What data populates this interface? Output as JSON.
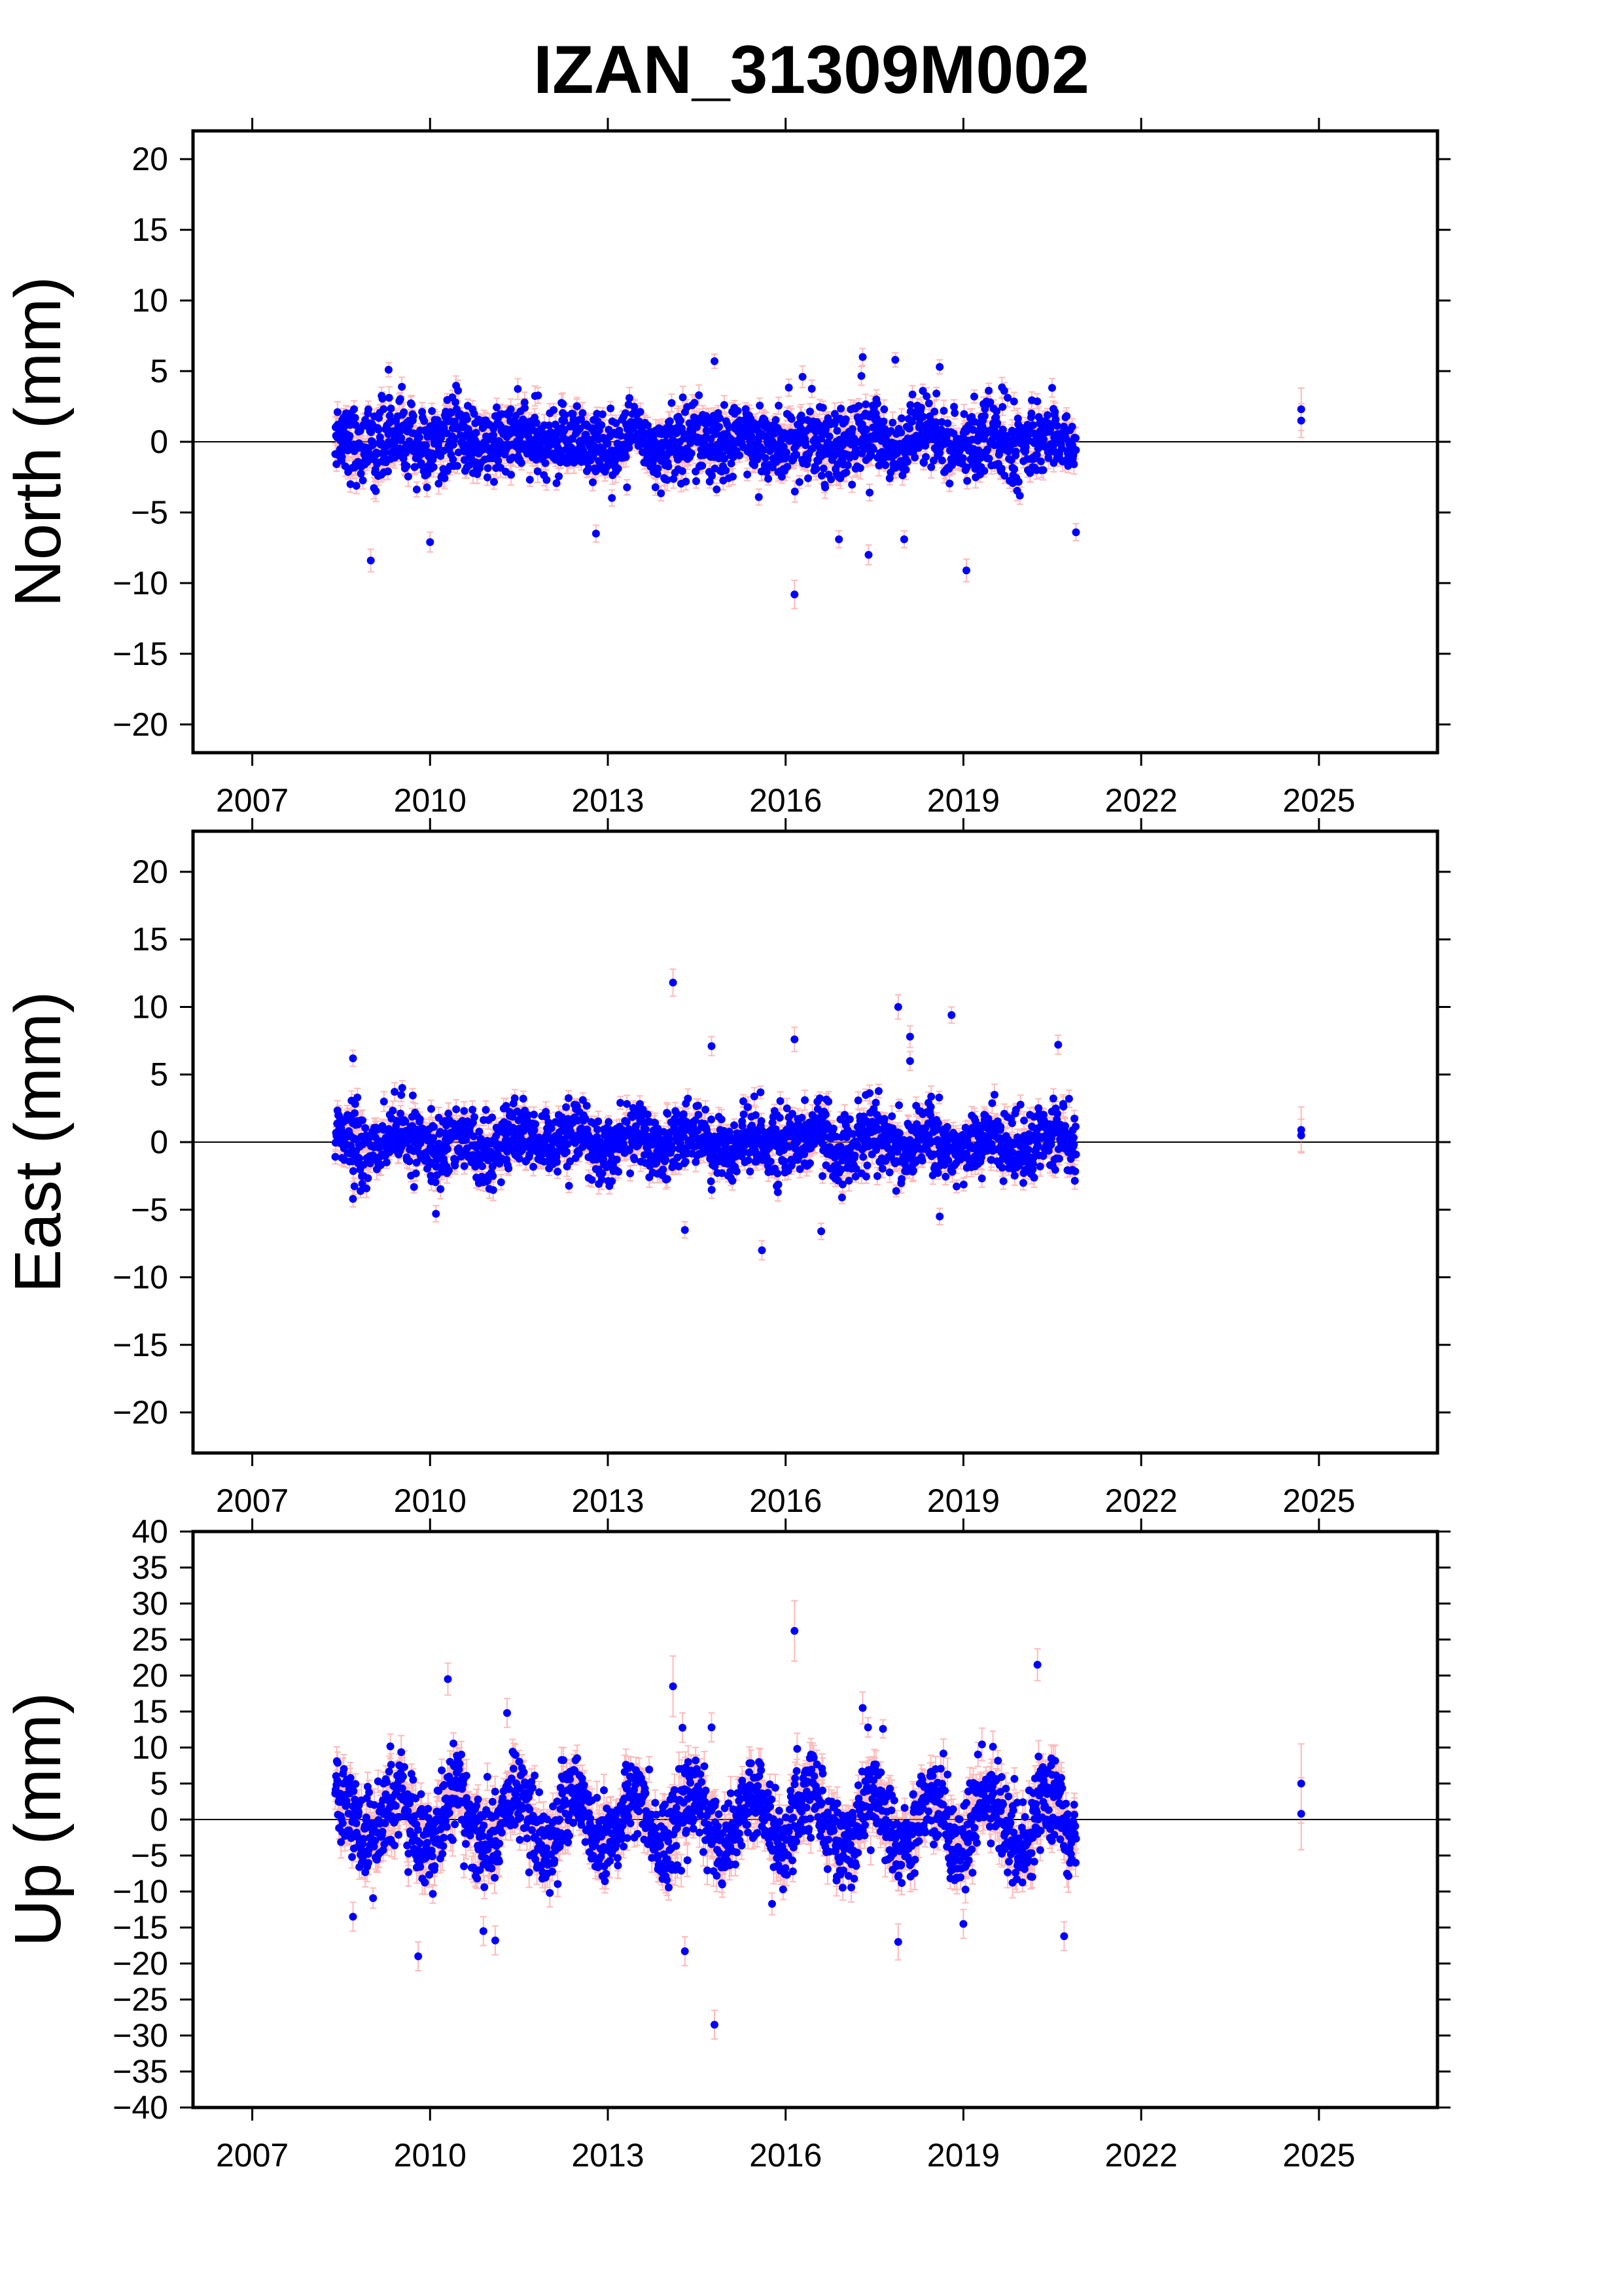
{
  "chart_data": {
    "type": "scatter",
    "title": "IZAN_31309M002",
    "x_ticks": [
      "2007",
      "2010",
      "2013",
      "2016",
      "2019",
      "2022",
      "2025"
    ],
    "xlim": [
      2006,
      2027
    ],
    "colors": {
      "point": "#0000ff",
      "error_bar": "#ff8080",
      "frame": "#000000"
    },
    "grid": false,
    "panels": [
      {
        "name": "north",
        "ylabel": "North (mm)",
        "ylim": [
          -22,
          22
        ],
        "y_ticks": [
          "20",
          "15",
          "10",
          "5",
          "0",
          "−5",
          "−10",
          "−15",
          "−20"
        ],
        "y_tick_values": [
          20,
          15,
          10,
          5,
          0,
          -5,
          -10,
          -15,
          -20
        ],
        "zero_line": true,
        "data_span": [
          2008.4,
          2020.9
        ],
        "noise_sd": 1.3,
        "seasonal_amp": 0.5,
        "error_bar": 0.6,
        "outliers": [
          {
            "x": 2009.0,
            "y": -8.4,
            "err": 0.8
          },
          {
            "x": 2009.3,
            "y": 5.1,
            "err": 0.5
          },
          {
            "x": 2010.0,
            "y": -7.1,
            "err": 0.7
          },
          {
            "x": 2012.8,
            "y": -6.5,
            "err": 0.6
          },
          {
            "x": 2014.8,
            "y": 5.7,
            "err": 0.5
          },
          {
            "x": 2016.15,
            "y": -10.8,
            "err": 1.0
          },
          {
            "x": 2016.9,
            "y": -6.9,
            "err": 0.6
          },
          {
            "x": 2017.3,
            "y": 6.0,
            "err": 0.6
          },
          {
            "x": 2017.4,
            "y": -8.0,
            "err": 0.7
          },
          {
            "x": 2017.85,
            "y": 5.8,
            "err": 0.5
          },
          {
            "x": 2018.0,
            "y": -6.9,
            "err": 0.6
          },
          {
            "x": 2018.6,
            "y": 5.3,
            "err": 0.5
          },
          {
            "x": 2019.05,
            "y": -9.1,
            "err": 0.8
          },
          {
            "x": 2020.9,
            "y": -6.4,
            "err": 0.6
          },
          {
            "x": 2024.7,
            "y": 2.3,
            "err": 1.5
          },
          {
            "x": 2024.7,
            "y": 1.5,
            "err": 1.2
          }
        ]
      },
      {
        "name": "east",
        "ylabel": "East (mm)",
        "ylim": [
          -23,
          23
        ],
        "y_ticks": [
          "20",
          "15",
          "10",
          "5",
          "0",
          "−5",
          "−10",
          "−15",
          "−20"
        ],
        "y_tick_values": [
          20,
          15,
          10,
          5,
          0,
          -5,
          -10,
          -15,
          -20
        ],
        "zero_line": true,
        "data_span": [
          2008.4,
          2020.9
        ],
        "noise_sd": 1.2,
        "seasonal_amp": 0.6,
        "error_bar": 0.6,
        "outliers": [
          {
            "x": 2008.7,
            "y": 6.2,
            "err": 0.6
          },
          {
            "x": 2008.7,
            "y": -4.2,
            "err": 0.6
          },
          {
            "x": 2010.1,
            "y": -5.3,
            "err": 0.6
          },
          {
            "x": 2014.1,
            "y": 11.8,
            "err": 1.0
          },
          {
            "x": 2014.3,
            "y": -6.5,
            "err": 0.6
          },
          {
            "x": 2014.75,
            "y": 7.1,
            "err": 0.7
          },
          {
            "x": 2015.6,
            "y": -8.0,
            "err": 0.7
          },
          {
            "x": 2016.15,
            "y": 7.6,
            "err": 0.9
          },
          {
            "x": 2016.6,
            "y": -6.6,
            "err": 0.6
          },
          {
            "x": 2017.9,
            "y": 10.0,
            "err": 0.9
          },
          {
            "x": 2018.1,
            "y": 7.8,
            "err": 0.8
          },
          {
            "x": 2018.1,
            "y": 6.0,
            "err": 0.7
          },
          {
            "x": 2018.6,
            "y": -5.5,
            "err": 0.6
          },
          {
            "x": 2018.8,
            "y": 9.4,
            "err": 0.6
          },
          {
            "x": 2020.6,
            "y": 7.2,
            "err": 0.7
          },
          {
            "x": 2024.7,
            "y": 0.9,
            "err": 1.7
          },
          {
            "x": 2024.7,
            "y": 0.5,
            "err": 1.2
          }
        ]
      },
      {
        "name": "up",
        "ylabel": "Up (mm)",
        "ylim": [
          -40,
          40
        ],
        "y_ticks": [
          "40",
          "35",
          "30",
          "25",
          "20",
          "15",
          "10",
          "5",
          "0",
          "−5",
          "−10",
          "−15",
          "−20",
          "−25",
          "−30",
          "−35",
          "−40"
        ],
        "y_tick_values": [
          40,
          35,
          30,
          25,
          20,
          15,
          10,
          5,
          0,
          -5,
          -10,
          -15,
          -20,
          -25,
          -30,
          -35,
          -40
        ],
        "zero_line": true,
        "data_span": [
          2008.4,
          2020.9
        ],
        "noise_sd": 3.0,
        "seasonal_amp": 3.5,
        "error_bar": 1.8,
        "outliers": [
          {
            "x": 2008.7,
            "y": -13.5,
            "err": 2.0
          },
          {
            "x": 2009.8,
            "y": -19.0,
            "err": 2.0
          },
          {
            "x": 2010.3,
            "y": 19.5,
            "err": 2.2
          },
          {
            "x": 2010.9,
            "y": -15.5,
            "err": 2.0
          },
          {
            "x": 2011.1,
            "y": -16.8,
            "err": 2.0
          },
          {
            "x": 2011.3,
            "y": 14.8,
            "err": 2.0
          },
          {
            "x": 2014.1,
            "y": 18.5,
            "err": 4.2
          },
          {
            "x": 2014.3,
            "y": -18.3,
            "err": 2.0
          },
          {
            "x": 2014.75,
            "y": 12.8,
            "err": 2.0
          },
          {
            "x": 2014.8,
            "y": -28.5,
            "err": 2.0
          },
          {
            "x": 2016.15,
            "y": 26.2,
            "err": 4.2
          },
          {
            "x": 2017.3,
            "y": 15.5,
            "err": 2.2
          },
          {
            "x": 2017.9,
            "y": -17.0,
            "err": 2.5
          },
          {
            "x": 2019.0,
            "y": -14.5,
            "err": 2.0
          },
          {
            "x": 2020.25,
            "y": 21.5,
            "err": 2.2
          },
          {
            "x": 2020.7,
            "y": -16.2,
            "err": 2.0
          },
          {
            "x": 2024.7,
            "y": 5.0,
            "err": 5.5
          },
          {
            "x": 2024.7,
            "y": 0.8,
            "err": 5.0
          }
        ]
      }
    ]
  }
}
